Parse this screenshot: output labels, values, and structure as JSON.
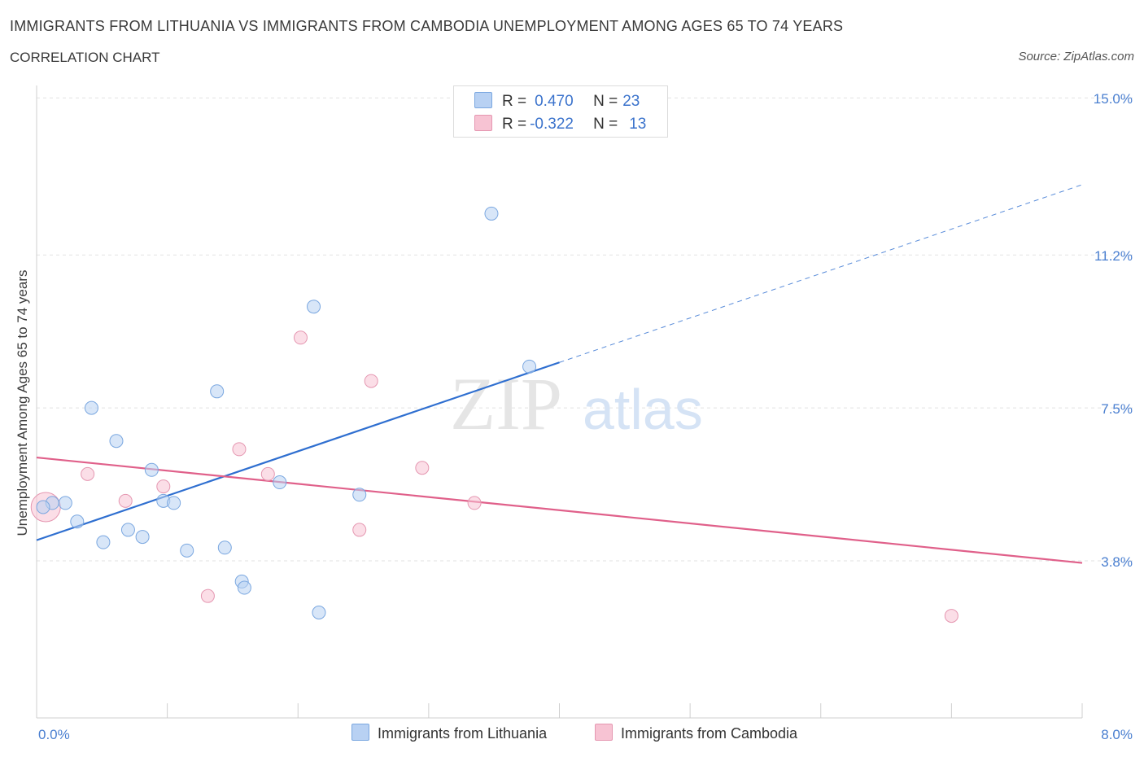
{
  "header": {
    "title": "IMMIGRANTS FROM LITHUANIA VS IMMIGRANTS FROM CAMBODIA UNEMPLOYMENT AMONG AGES 65 TO 74 YEARS",
    "subtitle": "CORRELATION CHART",
    "source": "Source: ZipAtlas.com"
  },
  "legend": {
    "rows": [
      {
        "r_label": "R =",
        "r_value": "0.470",
        "n_label": "N =",
        "n_value": "23"
      },
      {
        "r_label": "R =",
        "r_value": "-0.322",
        "n_label": "N =",
        "n_value": "13"
      }
    ]
  },
  "bottom_legend": {
    "series1": "Immigrants from Lithuania",
    "series2": "Immigrants from Cambodia"
  },
  "watermark": {
    "zip": "ZIP",
    "atlas": "atlas"
  },
  "chart_data": {
    "type": "scatter",
    "title": "IMMIGRANTS FROM LITHUANIA VS IMMIGRANTS FROM CAMBODIA UNEMPLOYMENT AMONG AGES 65 TO 74 YEARS",
    "xlabel": "",
    "ylabel": "Unemployment Among Ages 65 to 74 years",
    "xlim": [
      0,
      8
    ],
    "ylim": [
      0,
      15.3
    ],
    "x_tick_labels": [
      "0.0%",
      "8.0%"
    ],
    "y_ticks": [
      3.8,
      7.5,
      11.2,
      15.0
    ],
    "y_tick_labels": [
      "3.8%",
      "7.5%",
      "11.2%",
      "15.0%"
    ],
    "grid": true,
    "colors": {
      "lithuania_fill": "#b8d1f3",
      "lithuania_stroke": "#7aa7e0",
      "lithuania_line": "#2f6fd0",
      "cambodia_fill": "#f7c3d3",
      "cambodia_stroke": "#e597b1",
      "cambodia_line": "#e0608a"
    },
    "series": [
      {
        "name": "Immigrants from Lithuania",
        "R": 0.47,
        "N": 23,
        "trend": {
          "x0": 0.0,
          "y0": 4.3,
          "x1": 4.0,
          "y1": 8.6,
          "dashed_to_x": 8.0,
          "dashed_to_y": 12.9
        },
        "points": [
          {
            "x": 0.12,
            "y": 5.2
          },
          {
            "x": 0.22,
            "y": 5.2
          },
          {
            "x": 0.31,
            "y": 4.75
          },
          {
            "x": 0.42,
            "y": 7.5
          },
          {
            "x": 0.51,
            "y": 4.25
          },
          {
            "x": 0.61,
            "y": 6.7
          },
          {
            "x": 0.7,
            "y": 4.55
          },
          {
            "x": 0.81,
            "y": 4.38
          },
          {
            "x": 0.88,
            "y": 6.0
          },
          {
            "x": 0.97,
            "y": 5.25
          },
          {
            "x": 1.05,
            "y": 5.2
          },
          {
            "x": 1.15,
            "y": 4.05
          },
          {
            "x": 1.38,
            "y": 7.9
          },
          {
            "x": 1.44,
            "y": 4.12
          },
          {
            "x": 1.57,
            "y": 3.3
          },
          {
            "x": 1.59,
            "y": 3.15
          },
          {
            "x": 1.86,
            "y": 5.7
          },
          {
            "x": 2.12,
            "y": 9.95
          },
          {
            "x": 2.16,
            "y": 2.55
          },
          {
            "x": 2.47,
            "y": 5.4
          },
          {
            "x": 3.48,
            "y": 12.2
          },
          {
            "x": 3.77,
            "y": 8.5
          },
          {
            "x": 0.05,
            "y": 5.1
          }
        ]
      },
      {
        "name": "Immigrants from Cambodia",
        "R": -0.322,
        "N": 13,
        "trend": {
          "x0": 0.0,
          "y0": 6.3,
          "x1": 8.0,
          "y1": 3.75
        },
        "points": [
          {
            "x": 0.07,
            "y": 5.1,
            "large": true
          },
          {
            "x": 0.39,
            "y": 5.9
          },
          {
            "x": 0.68,
            "y": 5.25
          },
          {
            "x": 0.97,
            "y": 5.6
          },
          {
            "x": 1.31,
            "y": 2.95
          },
          {
            "x": 1.55,
            "y": 6.5
          },
          {
            "x": 1.77,
            "y": 5.9
          },
          {
            "x": 2.02,
            "y": 9.2
          },
          {
            "x": 2.47,
            "y": 4.55
          },
          {
            "x": 2.56,
            "y": 8.15
          },
          {
            "x": 2.95,
            "y": 6.05
          },
          {
            "x": 3.35,
            "y": 5.2
          },
          {
            "x": 7.0,
            "y": 2.47
          }
        ]
      }
    ]
  }
}
